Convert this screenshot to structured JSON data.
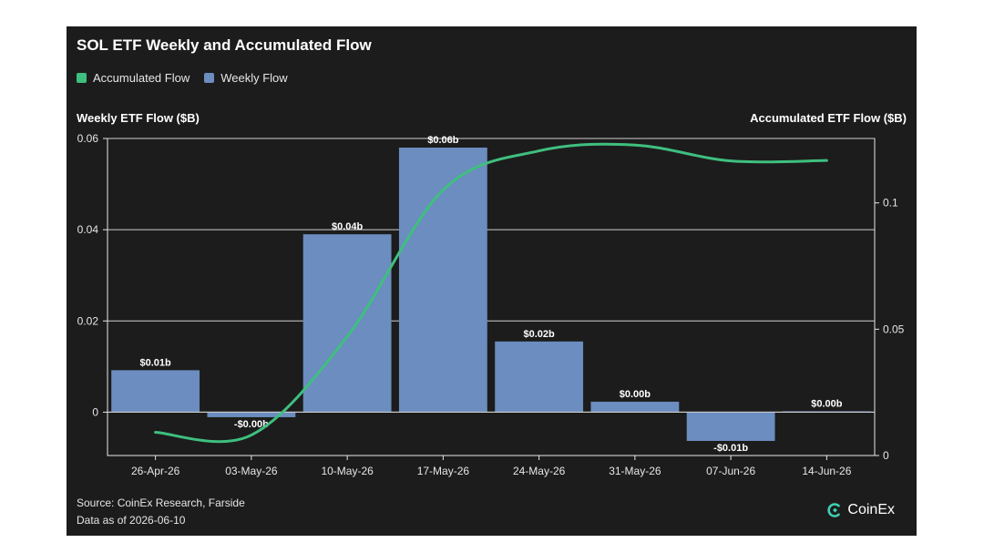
{
  "chart_data": {
    "type": "bar",
    "title": "SOL ETF Weekly and Accumulated Flow",
    "ylabel_left": "Weekly ETF Flow ($B)",
    "ylabel_right": "Accumulated ETF Flow ($B)",
    "categories": [
      "26-Apr-26",
      "03-May-26",
      "10-May-26",
      "17-May-26",
      "24-May-26",
      "31-May-26",
      "07-Jun-26",
      "14-Jun-26"
    ],
    "series": [
      {
        "name": "Weekly Flow",
        "type": "bar",
        "axis": "left",
        "color": "#6b8dbf",
        "values": [
          0.0092,
          -0.0011,
          0.039,
          0.058,
          0.0155,
          0.0023,
          -0.0063,
          0.0002
        ],
        "labels": [
          "$0.01b",
          "-$0.00b",
          "$0.04b",
          "$0.06b",
          "$0.02b",
          "$0.00b",
          "-$0.01b",
          "$0.00b"
        ]
      },
      {
        "name": "Accumulated Flow",
        "type": "line",
        "axis": "right",
        "color": "#3fbf7f",
        "values": [
          0.0092,
          0.0081,
          0.0471,
          0.1051,
          0.1206,
          0.1229,
          0.1166,
          0.1168
        ]
      }
    ],
    "ylim_left": [
      -0.0095,
      0.06
    ],
    "yticks_left": [
      0,
      0.02,
      0.04,
      0.06
    ],
    "yticks_left_labels": [
      "0",
      "0.02",
      "0.04",
      "0.06"
    ],
    "ylim_right": [
      0,
      0.1255
    ],
    "yticks_right": [
      0,
      0.05,
      0.1
    ],
    "yticks_right_labels": [
      "0",
      "0.05",
      "0.1"
    ],
    "legend_position": "top-left",
    "grid": true
  },
  "footer": {
    "source": "Source: CoinEx Research, Farside",
    "as_of": "Data as of 2026-06-10",
    "brand": "CoinEx"
  },
  "colors": {
    "background": "#1c1c1c",
    "bar": "#6b8dbf",
    "line": "#3fbf7f",
    "grid": "#d0d0d0"
  }
}
